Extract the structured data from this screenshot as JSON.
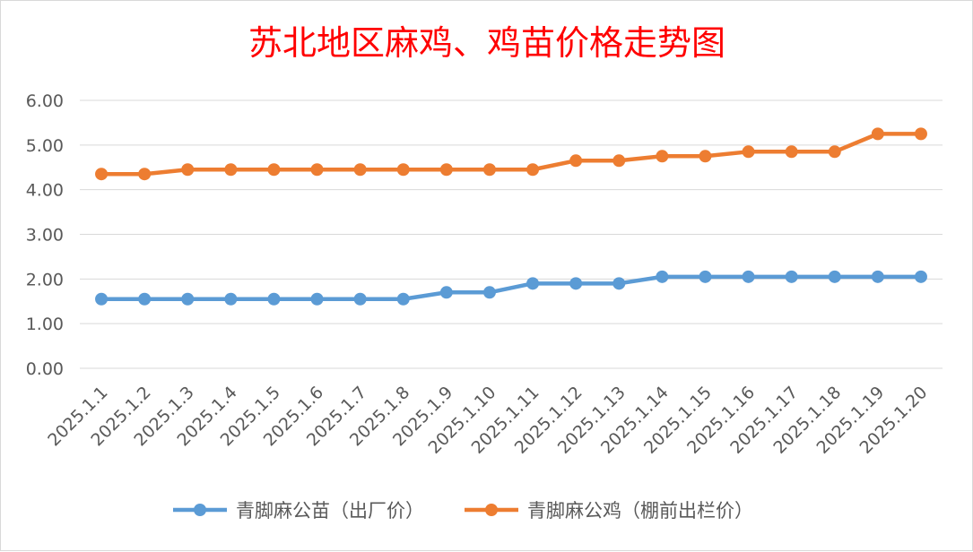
{
  "chart_data": {
    "type": "line",
    "title": "苏北地区麻鸡、鸡苗价格走势图",
    "xlabel": "",
    "ylabel": "",
    "categories": [
      "2025.1.1",
      "2025.1.2",
      "2025.1.3",
      "2025.1.4",
      "2025.1.5",
      "2025.1.6",
      "2025.1.7",
      "2025.1.8",
      "2025.1.9",
      "2025.1.10",
      "2025.1.11",
      "2025.1.12",
      "2025.1.13",
      "2025.1.14",
      "2025.1.15",
      "2025.1.16",
      "2025.1.17",
      "2025.1.18",
      "2025.1.19",
      "2025.1.20"
    ],
    "y_ticks": [
      "0.00",
      "1.00",
      "2.00",
      "3.00",
      "4.00",
      "5.00",
      "6.00"
    ],
    "ylim": [
      0,
      6
    ],
    "grid": true,
    "legend_position": "bottom",
    "series": [
      {
        "name": "青脚麻公苗（出厂价）",
        "color": "#5b9bd5",
        "values": [
          1.55,
          1.55,
          1.55,
          1.55,
          1.55,
          1.55,
          1.55,
          1.55,
          1.7,
          1.7,
          1.9,
          1.9,
          1.9,
          2.05,
          2.05,
          2.05,
          2.05,
          2.05,
          2.05,
          2.05
        ]
      },
      {
        "name": "青脚麻公鸡（棚前出栏价）",
        "color": "#ed7d31",
        "values": [
          4.35,
          4.35,
          4.45,
          4.45,
          4.45,
          4.45,
          4.45,
          4.45,
          4.45,
          4.45,
          4.45,
          4.65,
          4.65,
          4.75,
          4.75,
          4.85,
          4.85,
          4.85,
          5.25,
          5.25
        ]
      }
    ]
  }
}
